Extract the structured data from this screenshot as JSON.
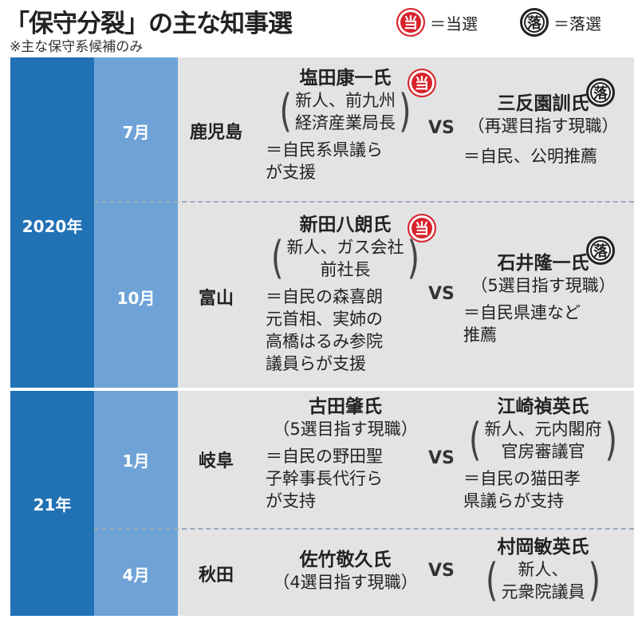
{
  "title": "「保守分裂」の主な知事選",
  "subtitle": "※主な保守系候補のみ",
  "legend": {
    "win_mark": "当",
    "win_text": "＝当選",
    "lose_mark": "落",
    "lose_text": "＝落選"
  },
  "vs": "VS",
  "years": [
    {
      "label": "2020年"
    },
    {
      "label": "21年"
    }
  ],
  "rows": [
    {
      "month": "7月",
      "pref": "鹿児島",
      "left": {
        "name": "塩田康一氏",
        "paren_lines": [
          "新人、前九州",
          "経済産業局長"
        ],
        "support_lines": [
          "＝自民系県議ら",
          "が支援"
        ],
        "result": "当"
      },
      "right": {
        "name": "三反園訓氏",
        "paren_lines": [
          "再選目指す現職"
        ],
        "support_lines": [
          "＝自民、公明推薦"
        ],
        "result": "落"
      }
    },
    {
      "month": "10月",
      "pref": "富山",
      "left": {
        "name": "新田八朗氏",
        "paren_lines": [
          "新人、ガス会社",
          "前社長"
        ],
        "support_lines": [
          "＝自民の森喜朗",
          "元首相、実姉の",
          "高橋はるみ参院",
          "議員らが支援"
        ],
        "result": "当"
      },
      "right": {
        "name": "石井隆一氏",
        "paren_lines": [
          "5選目指す現職"
        ],
        "support_lines": [
          "＝自民県連など",
          "推薦"
        ],
        "result": "落"
      }
    },
    {
      "month": "1月",
      "pref": "岐阜",
      "left": {
        "name": "古田肇氏",
        "paren_lines": [
          "5選目指す現職"
        ],
        "support_lines": [
          "＝自民の野田聖",
          "子幹事長代行ら",
          "が支持"
        ]
      },
      "right": {
        "name": "江崎禎英氏",
        "paren_lines": [
          "新人、元内閣府",
          "官房審議官"
        ],
        "support_lines": [
          "＝自民の猫田孝",
          "県議らが支持"
        ]
      }
    },
    {
      "month": "4月",
      "pref": "秋田",
      "left": {
        "name": "佐竹敬久氏",
        "paren_lines": [
          "4選目指す現職"
        ],
        "support_lines": []
      },
      "right": {
        "name": "村岡敏英氏",
        "paren_lines": [
          "新人、",
          "元衆院議員"
        ],
        "support_lines": []
      }
    }
  ]
}
